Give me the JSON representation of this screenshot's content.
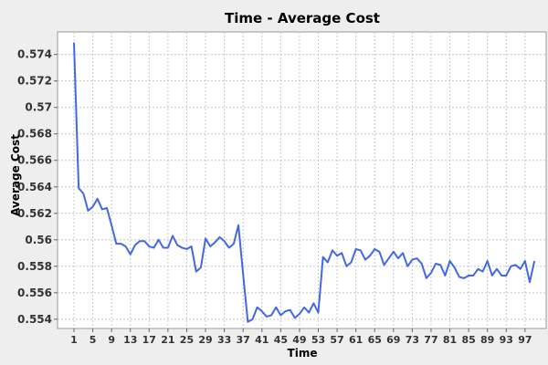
{
  "chart_data": {
    "type": "line",
    "title": "Time - Average Cost",
    "xlabel": "Time",
    "ylabel": "Average Cost",
    "xlim": [
      -2.5,
      101.5
    ],
    "ylim": [
      0.5533,
      0.5757
    ],
    "xticks": [
      1,
      5,
      9,
      13,
      17,
      21,
      25,
      29,
      33,
      37,
      41,
      45,
      49,
      53,
      57,
      61,
      65,
      69,
      73,
      77,
      81,
      85,
      89,
      93,
      97
    ],
    "yticks": [
      0.554,
      0.556,
      0.558,
      0.56,
      0.562,
      0.564,
      0.566,
      0.568,
      0.57,
      0.572,
      0.574
    ],
    "ytick_labels": [
      "0.554",
      "0.556",
      "0.558",
      "0.56",
      "0.562",
      "0.564",
      "0.566",
      "0.568",
      "0.57",
      "0.572",
      "0.574"
    ],
    "grid": true,
    "colors": {
      "line": "#4169e1",
      "plot_bg": "#ffffff",
      "page_bg": "#eeeeee",
      "grid": "#c8c8c8"
    },
    "series": [
      {
        "x": [
          1,
          2,
          3,
          4,
          5,
          6,
          7,
          8,
          9,
          10,
          11,
          12,
          13,
          14,
          15,
          16,
          17,
          18,
          19,
          20,
          21,
          22,
          23,
          24,
          25,
          26,
          27,
          28,
          29,
          30,
          31,
          32,
          33,
          34,
          35,
          36,
          37,
          38,
          39,
          40,
          41,
          42,
          43,
          44,
          45,
          46,
          47,
          48,
          49,
          50,
          51,
          52,
          53,
          54,
          55,
          56,
          57,
          58,
          59,
          60,
          61,
          62,
          63,
          64,
          65,
          66,
          67,
          68,
          69,
          70,
          71,
          72,
          73,
          74,
          75,
          76,
          77,
          78,
          79,
          80,
          81,
          82,
          83,
          84,
          85,
          86,
          87,
          88,
          89,
          90,
          91,
          92,
          93,
          94,
          95,
          96,
          97,
          98,
          99
        ],
        "values": [
          0.5749,
          0.5639,
          0.5635,
          0.5622,
          0.5625,
          0.5631,
          0.5623,
          0.5624,
          0.5611,
          0.5597,
          0.5597,
          0.5595,
          0.5589,
          0.5596,
          0.5599,
          0.5599,
          0.5595,
          0.5594,
          0.56,
          0.5594,
          0.5594,
          0.5603,
          0.5596,
          0.5594,
          0.5593,
          0.5595,
          0.5576,
          0.5579,
          0.5601,
          0.5595,
          0.5598,
          0.5602,
          0.5599,
          0.5594,
          0.5597,
          0.5611,
          0.5574,
          0.5538,
          0.554,
          0.5549,
          0.5546,
          0.5542,
          0.5543,
          0.5549,
          0.5543,
          0.5546,
          0.5547,
          0.5541,
          0.5544,
          0.5549,
          0.5545,
          0.5552,
          0.5545,
          0.5587,
          0.5583,
          0.5592,
          0.5588,
          0.559,
          0.558,
          0.5583,
          0.5593,
          0.5592,
          0.5585,
          0.5588,
          0.5593,
          0.5591,
          0.5581,
          0.5586,
          0.5591,
          0.5586,
          0.559,
          0.558,
          0.5585,
          0.5586,
          0.5582,
          0.5571,
          0.5575,
          0.5582,
          0.5581,
          0.5573,
          0.5584,
          0.5579,
          0.5572,
          0.5571,
          0.5573,
          0.5573,
          0.5578,
          0.5576,
          0.5584,
          0.5573,
          0.5578,
          0.5573,
          0.5573,
          0.558,
          0.5581,
          0.5578,
          0.5584,
          0.5568,
          0.5584
        ]
      }
    ]
  }
}
